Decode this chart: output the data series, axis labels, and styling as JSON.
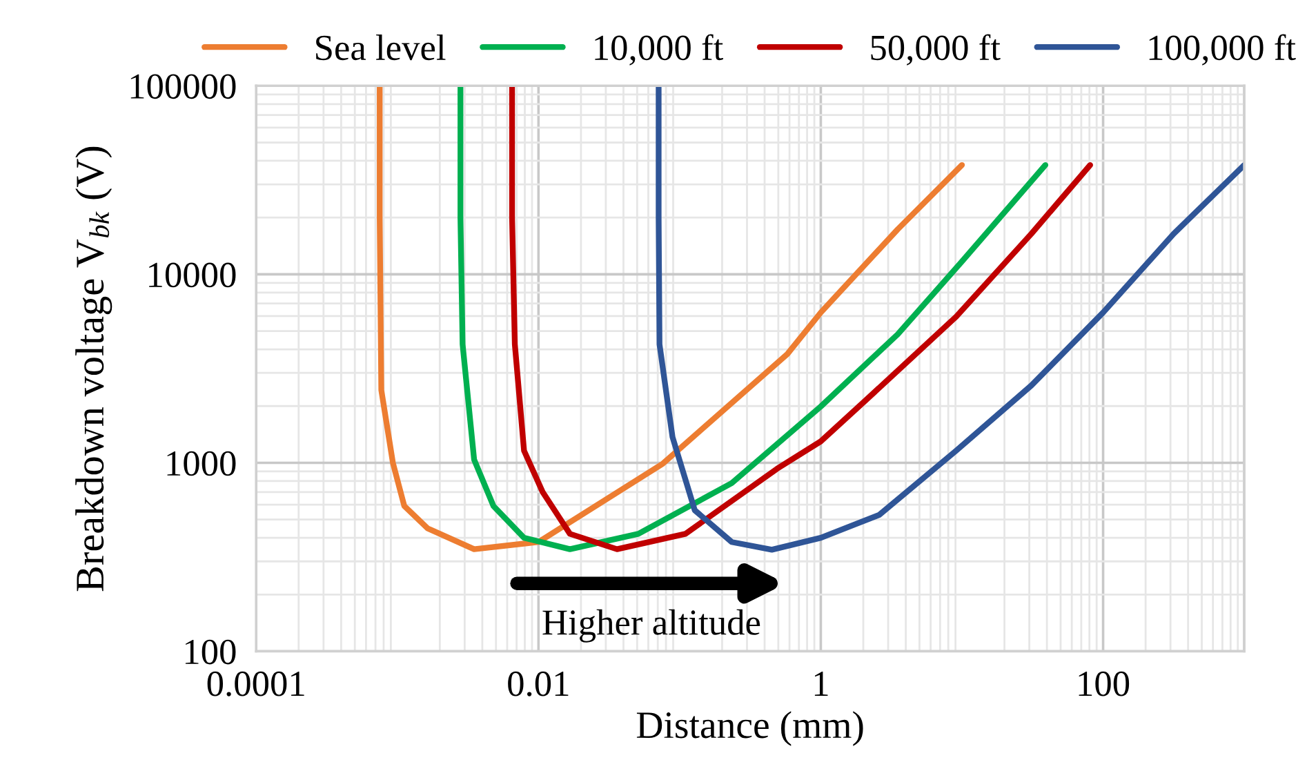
{
  "chart_data": {
    "type": "line",
    "xlabel": "Distance (mm)",
    "ylabel": "Breakdown voltage V$_{bk}$ (V)",
    "log": "xy",
    "xlim": [
      0.0001,
      1000
    ],
    "xticks": [
      {
        "value": 0.0001,
        "label": "0.0001"
      },
      {
        "value": 0.01,
        "label": "0.01"
      },
      1,
      100,
      {
        "value": 1000,
        "label": null
      }
    ],
    "ylim": [
      100,
      100000
    ],
    "yticks": [
      100,
      1000,
      10000,
      100000
    ],
    "grid": true,
    "legend": "top",
    "marker": "none",
    "line_style": "solid",
    "annotations": [
      "Higher altitude"
    ],
    "series": [
      {
        "name": "Sea level",
        "color": "#ed7d31",
        "x": [
          0.00075,
          0.00075,
          0.00077,
          0.00093,
          0.00112,
          0.00164,
          0.0035,
          0.01,
          0.076,
          0.58,
          1,
          3.5,
          10
        ],
        "values": [
          100000,
          20000,
          2430,
          1000,
          590,
          449,
          348,
          380,
          990,
          3780,
          6270,
          17300,
          38000
        ]
      },
      {
        "name": "10,000 ft",
        "color": "#00b050",
        "x": [
          0.0028,
          0.0028,
          0.0029,
          0.0035,
          0.0048,
          0.0079,
          0.0167,
          0.051,
          0.234,
          1,
          3.5,
          10,
          39
        ],
        "values": [
          100000,
          20000,
          4250,
          1040,
          590,
          400,
          348,
          420,
          780,
          1990,
          4800,
          11700,
          38000
        ]
      },
      {
        "name": "50,000 ft",
        "color": "#c00000",
        "x": [
          0.0065,
          0.0065,
          0.0068,
          0.0079,
          0.0107,
          0.0167,
          0.036,
          0.11,
          0.49,
          1,
          2.1,
          9.1,
          31,
          81
        ],
        "values": [
          100000,
          20000,
          4250,
          1160,
          700,
          420,
          348,
          420,
          930,
          1300,
          2160,
          5960,
          16400,
          38000
        ]
      },
      {
        "name": "100,000 ft",
        "color": "#2f5597",
        "x": [
          0.071,
          0.071,
          0.072,
          0.089,
          0.128,
          0.234,
          0.45,
          1,
          2.6,
          9.1,
          31,
          100,
          316,
          1000
        ],
        "values": [
          100000,
          20000,
          4250,
          1370,
          560,
          380,
          346,
          400,
          530,
          1160,
          2570,
          6270,
          16400,
          38000
        ]
      }
    ]
  }
}
